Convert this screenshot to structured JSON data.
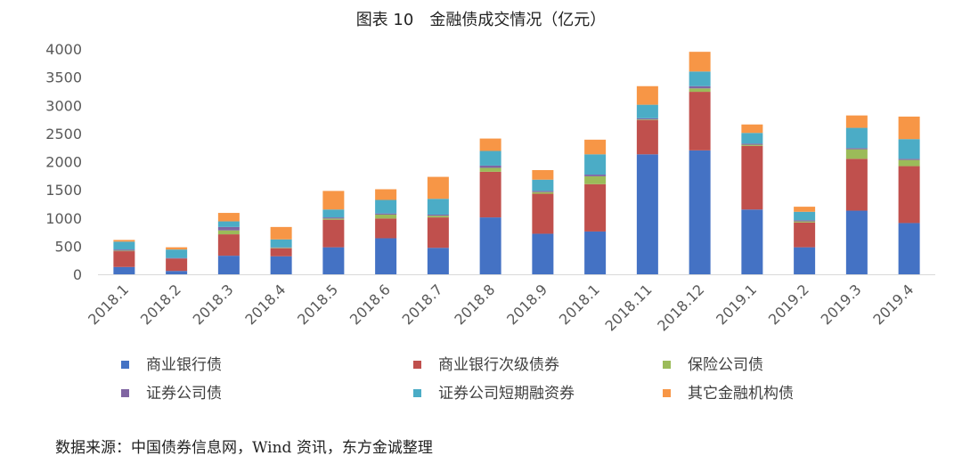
{
  "chart_data": {
    "type": "bar",
    "stacked": true,
    "title": "图表 10　金融债成交情况（亿元）",
    "categories": [
      "2018.1",
      "2018.2",
      "2018.3",
      "2018.4",
      "2018.5",
      "2018.6",
      "2018.7",
      "2018.8",
      "2018.9",
      "2018.1",
      "2018.11",
      "2018.12",
      "2019.1",
      "2019.2",
      "2019.3",
      "2019.4"
    ],
    "ylim": [
      0,
      4000
    ],
    "yticks": [
      0,
      500,
      1000,
      1500,
      2000,
      2500,
      3000,
      3500,
      4000
    ],
    "grid": false,
    "legend_position": "bottom",
    "series": [
      {
        "name": "商业银行债",
        "color": "#4472C4",
        "values": [
          130,
          60,
          330,
          320,
          480,
          640,
          470,
          1010,
          720,
          760,
          2130,
          2200,
          1150,
          480,
          1130,
          910
        ]
      },
      {
        "name": "商业银行次级债券",
        "color": "#C0504D",
        "values": [
          280,
          220,
          380,
          140,
          490,
          350,
          540,
          810,
          710,
          840,
          610,
          1040,
          1130,
          440,
          920,
          1010
        ]
      },
      {
        "name": "保险公司债",
        "color": "#9BBB59",
        "values": [
          10,
          0,
          70,
          10,
          20,
          70,
          30,
          70,
          30,
          140,
          10,
          60,
          20,
          20,
          170,
          110
        ]
      },
      {
        "name": "证券公司债",
        "color": "#8064A2",
        "values": [
          20,
          10,
          60,
          10,
          20,
          20,
          20,
          40,
          20,
          30,
          20,
          40,
          20,
          20,
          20,
          20
        ]
      },
      {
        "name": "证券公司短期融资券",
        "color": "#4BACC6",
        "values": [
          140,
          150,
          100,
          140,
          140,
          240,
          280,
          260,
          200,
          360,
          240,
          260,
          190,
          150,
          360,
          350
        ]
      },
      {
        "name": "其它金融机构债",
        "color": "#F79646",
        "values": [
          30,
          40,
          150,
          220,
          330,
          190,
          390,
          220,
          170,
          260,
          330,
          350,
          150,
          90,
          220,
          400
        ]
      }
    ]
  },
  "source": "数据来源：中国债券信息网，Wind 资讯，东方金诚整理"
}
